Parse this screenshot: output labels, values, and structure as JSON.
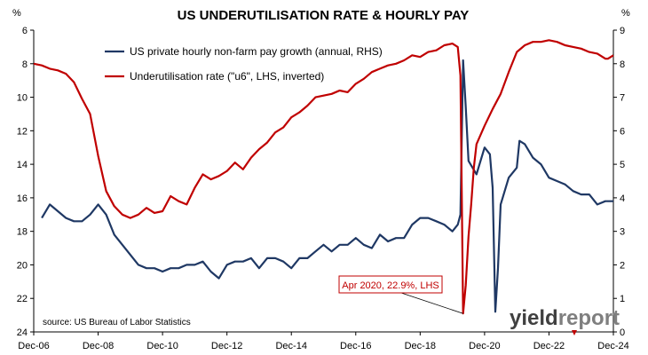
{
  "chart_data": {
    "type": "line",
    "title": "US UNDERUTILISATION RATE & HOURLY PAY",
    "left_axis": {
      "unit_label": "%",
      "range": [
        24,
        6
      ],
      "inverted": true,
      "ticks": [
        6,
        8,
        10,
        12,
        14,
        16,
        18,
        20,
        22,
        24
      ]
    },
    "right_axis": {
      "unit_label": "%",
      "range": [
        0,
        9
      ],
      "ticks": [
        0,
        1,
        2,
        3,
        4,
        5,
        6,
        7,
        8,
        9
      ]
    },
    "x_axis": {
      "range": [
        "2006-12",
        "2024-12"
      ],
      "ticks": [
        "Dec-06",
        "Dec-08",
        "Dec-10",
        "Dec-12",
        "Dec-14",
        "Dec-16",
        "Dec-18",
        "Dec-20",
        "Dec-22",
        "Dec-24"
      ]
    },
    "grid": false,
    "legend_position": "top-left",
    "series": [
      {
        "name": "US private hourly non-farm pay growth (annual, RHS)",
        "axis": "right",
        "color": "#1f3864",
        "points": [
          [
            "2007-03",
            3.4
          ],
          [
            "2007-06",
            3.8
          ],
          [
            "2007-09",
            3.6
          ],
          [
            "2007-12",
            3.4
          ],
          [
            "2008-03",
            3.3
          ],
          [
            "2008-06",
            3.3
          ],
          [
            "2008-09",
            3.5
          ],
          [
            "2008-12",
            3.8
          ],
          [
            "2009-03",
            3.5
          ],
          [
            "2009-06",
            2.9
          ],
          [
            "2009-09",
            2.6
          ],
          [
            "2009-12",
            2.3
          ],
          [
            "2010-03",
            2.0
          ],
          [
            "2010-06",
            1.9
          ],
          [
            "2010-09",
            1.9
          ],
          [
            "2010-12",
            1.8
          ],
          [
            "2011-03",
            1.9
          ],
          [
            "2011-06",
            1.9
          ],
          [
            "2011-09",
            2.0
          ],
          [
            "2011-12",
            2.0
          ],
          [
            "2012-03",
            2.1
          ],
          [
            "2012-06",
            1.8
          ],
          [
            "2012-09",
            1.6
          ],
          [
            "2012-12",
            2.0
          ],
          [
            "2013-03",
            2.1
          ],
          [
            "2013-06",
            2.1
          ],
          [
            "2013-09",
            2.2
          ],
          [
            "2013-12",
            1.9
          ],
          [
            "2014-03",
            2.2
          ],
          [
            "2014-06",
            2.2
          ],
          [
            "2014-09",
            2.1
          ],
          [
            "2014-12",
            1.9
          ],
          [
            "2015-03",
            2.2
          ],
          [
            "2015-06",
            2.2
          ],
          [
            "2015-09",
            2.4
          ],
          [
            "2015-12",
            2.6
          ],
          [
            "2016-03",
            2.4
          ],
          [
            "2016-06",
            2.6
          ],
          [
            "2016-09",
            2.6
          ],
          [
            "2016-12",
            2.8
          ],
          [
            "2017-03",
            2.6
          ],
          [
            "2017-06",
            2.5
          ],
          [
            "2017-09",
            2.9
          ],
          [
            "2017-12",
            2.7
          ],
          [
            "2018-03",
            2.8
          ],
          [
            "2018-06",
            2.8
          ],
          [
            "2018-09",
            3.2
          ],
          [
            "2018-12",
            3.4
          ],
          [
            "2019-03",
            3.4
          ],
          [
            "2019-06",
            3.3
          ],
          [
            "2019-09",
            3.2
          ],
          [
            "2019-12",
            3.0
          ],
          [
            "2020-02",
            3.2
          ],
          [
            "2020-03",
            3.5
          ],
          [
            "2020-04",
            8.1
          ],
          [
            "2020-05",
            6.7
          ],
          [
            "2020-06",
            5.1
          ],
          [
            "2020-09",
            4.7
          ],
          [
            "2020-12",
            5.5
          ],
          [
            "2021-02",
            5.3
          ],
          [
            "2021-03",
            4.3
          ],
          [
            "2021-04",
            0.6
          ],
          [
            "2021-05",
            1.9
          ],
          [
            "2021-06",
            3.8
          ],
          [
            "2021-09",
            4.6
          ],
          [
            "2021-12",
            4.9
          ],
          [
            "2022-01",
            5.7
          ],
          [
            "2022-03",
            5.6
          ],
          [
            "2022-06",
            5.2
          ],
          [
            "2022-09",
            5.0
          ],
          [
            "2022-12",
            4.6
          ],
          [
            "2023-03",
            4.5
          ],
          [
            "2023-06",
            4.4
          ],
          [
            "2023-09",
            4.2
          ],
          [
            "2023-12",
            4.1
          ],
          [
            "2024-03",
            4.1
          ],
          [
            "2024-06",
            3.8
          ],
          [
            "2024-09",
            3.9
          ],
          [
            "2024-12",
            3.9
          ]
        ]
      },
      {
        "name": "Underutilisation rate (\"u6\", LHS, inverted)",
        "axis": "left",
        "color": "#c00000",
        "points": [
          [
            "2006-12",
            8.0
          ],
          [
            "2007-03",
            8.1
          ],
          [
            "2007-06",
            8.3
          ],
          [
            "2007-09",
            8.4
          ],
          [
            "2007-12",
            8.6
          ],
          [
            "2008-03",
            9.1
          ],
          [
            "2008-06",
            10.1
          ],
          [
            "2008-09",
            11.0
          ],
          [
            "2008-12",
            13.5
          ],
          [
            "2009-03",
            15.6
          ],
          [
            "2009-06",
            16.5
          ],
          [
            "2009-09",
            17.0
          ],
          [
            "2009-12",
            17.2
          ],
          [
            "2010-03",
            17.0
          ],
          [
            "2010-06",
            16.6
          ],
          [
            "2010-09",
            16.9
          ],
          [
            "2010-12",
            16.8
          ],
          [
            "2011-03",
            15.9
          ],
          [
            "2011-06",
            16.2
          ],
          [
            "2011-09",
            16.4
          ],
          [
            "2011-12",
            15.4
          ],
          [
            "2012-03",
            14.6
          ],
          [
            "2012-06",
            14.9
          ],
          [
            "2012-09",
            14.7
          ],
          [
            "2012-12",
            14.4
          ],
          [
            "2013-03",
            13.9
          ],
          [
            "2013-06",
            14.3
          ],
          [
            "2013-09",
            13.6
          ],
          [
            "2013-12",
            13.1
          ],
          [
            "2014-03",
            12.7
          ],
          [
            "2014-06",
            12.1
          ],
          [
            "2014-09",
            11.8
          ],
          [
            "2014-12",
            11.2
          ],
          [
            "2015-03",
            10.9
          ],
          [
            "2015-06",
            10.5
          ],
          [
            "2015-09",
            10.0
          ],
          [
            "2015-12",
            9.9
          ],
          [
            "2016-03",
            9.8
          ],
          [
            "2016-06",
            9.6
          ],
          [
            "2016-09",
            9.7
          ],
          [
            "2016-12",
            9.2
          ],
          [
            "2017-03",
            8.9
          ],
          [
            "2017-06",
            8.5
          ],
          [
            "2017-09",
            8.3
          ],
          [
            "2017-12",
            8.1
          ],
          [
            "2018-03",
            8.0
          ],
          [
            "2018-06",
            7.8
          ],
          [
            "2018-09",
            7.5
          ],
          [
            "2018-12",
            7.6
          ],
          [
            "2019-03",
            7.3
          ],
          [
            "2019-06",
            7.2
          ],
          [
            "2019-09",
            6.9
          ],
          [
            "2019-12",
            6.8
          ],
          [
            "2020-02",
            7.0
          ],
          [
            "2020-03",
            8.7
          ],
          [
            "2020-04",
            22.9
          ],
          [
            "2020-05",
            21.2
          ],
          [
            "2020-06",
            18.3
          ],
          [
            "2020-07",
            16.4
          ],
          [
            "2020-08",
            14.2
          ],
          [
            "2020-09",
            12.8
          ],
          [
            "2020-12",
            11.7
          ],
          [
            "2021-03",
            10.7
          ],
          [
            "2021-06",
            9.8
          ],
          [
            "2021-09",
            8.5
          ],
          [
            "2021-12",
            7.3
          ],
          [
            "2022-03",
            6.9
          ],
          [
            "2022-06",
            6.7
          ],
          [
            "2022-09",
            6.7
          ],
          [
            "2022-12",
            6.6
          ],
          [
            "2023-03",
            6.7
          ],
          [
            "2023-06",
            6.9
          ],
          [
            "2023-09",
            7.0
          ],
          [
            "2023-12",
            7.1
          ],
          [
            "2024-03",
            7.3
          ],
          [
            "2024-06",
            7.4
          ],
          [
            "2024-09",
            7.7
          ],
          [
            "2024-10",
            7.7
          ],
          [
            "2024-12",
            7.5
          ]
        ]
      }
    ],
    "annotations": [
      {
        "text": "Apr 2020, 22.9%, LHS",
        "date": "2020-04",
        "value": 22.9,
        "axis": "left",
        "color": "#c00000"
      }
    ],
    "source": "source: US Bureau of Labor Statistics"
  },
  "logo": {
    "text": "yieldreport",
    "part1": "yield",
    "part2": "report",
    "dark_color": "#404040",
    "light_color": "#7f7f7f",
    "accent_color": "#c00000"
  }
}
